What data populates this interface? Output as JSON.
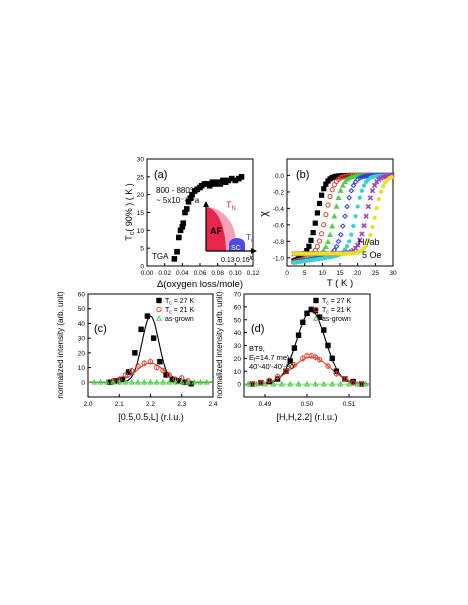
{
  "chart_data": [
    {
      "panel": "(a)",
      "type": "scatter",
      "xlabel": "Δ(oxygen loss/mole)",
      "ylabel": "T<sub>c</sub>( 90% ) ( K )",
      "ylabel_main": "T",
      "ylabel_sub": "c",
      "ylabel_rest": "( 90% ) ( K )",
      "xlim": [
        0.0,
        0.12
      ],
      "ylim": [
        0,
        30
      ],
      "xticks": [
        "0.00",
        "0.02",
        "0.04",
        "0.06",
        "0.08",
        "0.10",
        "0.12"
      ],
      "yticks": [
        "0",
        "5",
        "10",
        "15",
        "20",
        "25",
        "30"
      ],
      "annotations": {
        "temp": "800 - 880°C",
        "pressure": "~ 5x10⁻³ Pa",
        "method": "TGA"
      },
      "inset": {
        "af": "AF",
        "sc": "SC",
        "tn": "T",
        "tn_sub": "N",
        "tc": "T",
        "tc_sub": "c",
        "x_axis": "x",
        "ticks": [
          "0.13",
          "0.16"
        ]
      },
      "series": [
        {
          "marker": "square",
          "color": "#000000",
          "x": [
            0.031,
            0.034,
            0.036,
            0.038,
            0.04,
            0.041,
            0.043,
            0.045,
            0.047,
            0.049,
            0.051,
            0.054,
            0.057,
            0.06,
            0.062,
            0.065,
            0.068,
            0.071,
            0.074,
            0.077,
            0.08,
            0.083,
            0.086,
            0.089,
            0.092,
            0.096,
            0.1,
            0.104,
            0.107
          ],
          "y": [
            2,
            4,
            8,
            10,
            11,
            12,
            15,
            16,
            18,
            19,
            20,
            21,
            21.5,
            22,
            22.5,
            23,
            23,
            22.5,
            23.5,
            23,
            23.5,
            23,
            24,
            23.5,
            24,
            24.5,
            24,
            24.5,
            25
          ]
        }
      ]
    },
    {
      "panel": "(b)",
      "type": "scatter",
      "xlabel": "T ( K )",
      "ylabel": "χ",
      "xlim": [
        0,
        30
      ],
      "ylim": [
        -1.1,
        0.2
      ],
      "xticks": [
        "0",
        "5",
        "10",
        "15",
        "20",
        "25",
        "30"
      ],
      "yticks": [
        "-1.0",
        "-0.8",
        "-0.6",
        "-0.4",
        "-0.2",
        "0.0"
      ],
      "annotations": {
        "field_dir": "H//ab",
        "field": "5 Oe"
      },
      "series": [
        {
          "marker": "square",
          "color": "#000000",
          "tc": 8.5,
          "fill": true
        },
        {
          "marker": "circle",
          "color": "#e8402a",
          "tc": 11.0,
          "fill": false
        },
        {
          "marker": "triangle",
          "color": "#4ad24a",
          "tc": 13.5,
          "fill": true
        },
        {
          "marker": "diamond",
          "color": "#2a3ae8",
          "tc": 16.5,
          "fill": false
        },
        {
          "marker": "star",
          "color": "#38d0d0",
          "tc": 19.5,
          "fill": true
        },
        {
          "marker": "x",
          "color": "#a040c0",
          "tc": 22.5,
          "fill": false
        },
        {
          "marker": "star",
          "color": "#e8e020",
          "tc": 25.0,
          "fill": true
        }
      ]
    },
    {
      "panel": "(c)",
      "type": "scatter",
      "xlabel": "[0.5,0.5,L] (r.l.u.)",
      "ylabel": "normalized intensity (arb. unit)",
      "xlim": [
        2.0,
        2.4
      ],
      "ylim": [
        -10,
        60
      ],
      "xticks": [
        "2.0",
        "2.1",
        "2.2",
        "2.3",
        "2.4"
      ],
      "yticks": [
        "0",
        "10",
        "20",
        "30",
        "40",
        "50",
        "60"
      ],
      "legend": [
        {
          "label_prefix": "T",
          "label_sub": "c",
          "label_rest": " = 27 K",
          "marker": "square",
          "color": "#000000"
        },
        {
          "label_prefix": "T",
          "label_sub": "c",
          "label_rest": " = 21 K",
          "marker": "circle",
          "color": "#e8402a"
        },
        {
          "label_prefix": "",
          "label_sub": "",
          "label_rest": "as-grown",
          "marker": "triangle",
          "color": "#4ad24a"
        }
      ],
      "series": [
        {
          "name": "Tc = 27 K",
          "marker": "square",
          "color": "#000000",
          "fill": true,
          "x": [
            2.07,
            2.09,
            2.11,
            2.13,
            2.15,
            2.17,
            2.19,
            2.21,
            2.23,
            2.25,
            2.27,
            2.29,
            2.31,
            2.33
          ],
          "y": [
            0,
            1,
            2,
            7,
            20,
            36,
            45,
            30,
            14,
            5,
            2,
            1,
            0,
            -1
          ]
        },
        {
          "name": "Tc = 21 K",
          "marker": "circle",
          "color": "#e8402a",
          "fill": false,
          "x": [
            2.08,
            2.1,
            2.12,
            2.14,
            2.16,
            2.18,
            2.2,
            2.22,
            2.24,
            2.26,
            2.28,
            2.3,
            2.32
          ],
          "y": [
            1,
            2,
            5,
            8,
            11,
            13,
            14,
            10,
            8,
            5,
            2,
            3,
            1
          ]
        },
        {
          "name": "as-grown",
          "marker": "triangle",
          "color": "#4ad24a",
          "fill": false,
          "x": [
            2.02,
            2.04,
            2.06,
            2.08,
            2.1,
            2.12,
            2.14,
            2.16,
            2.18,
            2.2,
            2.22,
            2.24,
            2.26,
            2.28,
            2.3,
            2.32,
            2.34,
            2.36,
            2.38
          ],
          "y": [
            0,
            0,
            0,
            0,
            0,
            0,
            0,
            0,
            0,
            0,
            0,
            0,
            0,
            0,
            0,
            0,
            0,
            0,
            0
          ]
        }
      ],
      "fits": [
        {
          "color": "#000000",
          "amp": 45,
          "center": 2.2,
          "sigma": 0.027
        },
        {
          "color": "#e8402a",
          "amp": 13,
          "center": 2.2,
          "sigma": 0.045
        }
      ]
    },
    {
      "panel": "(d)",
      "type": "scatter",
      "xlabel": "[H,H,2.2] (r.l.u.)",
      "ylabel": "normalized intensity (arb. unit)",
      "xlim": [
        0.485,
        0.515
      ],
      "ylim": [
        -10,
        70
      ],
      "xticks": [
        "0.49",
        "0.50",
        "0.51"
      ],
      "yticks": [
        "0",
        "10",
        "20",
        "30",
        "40",
        "50",
        "60",
        "70"
      ],
      "annotations": {
        "instrument": "BT9,",
        "energy_prefix": "E",
        "energy_sub": "f",
        "energy_rest": "=14.7 meV",
        "collimation": "40'-40'-40'-80'"
      },
      "legend": [
        {
          "label_prefix": "T",
          "label_sub": "c",
          "label_rest": " = 27 K",
          "marker": "square",
          "color": "#000000"
        },
        {
          "label_prefix": "T",
          "label_sub": "c",
          "label_rest": " = 21 K",
          "marker": "circle",
          "color": "#e8402a"
        },
        {
          "label_prefix": "",
          "label_sub": "",
          "label_rest": "as-grown",
          "marker": "triangle",
          "color": "#4ad24a"
        }
      ],
      "series": [
        {
          "name": "Tc = 27 K",
          "marker": "square",
          "color": "#000000",
          "fill": true,
          "x": [
            0.487,
            0.489,
            0.491,
            0.493,
            0.495,
            0.496,
            0.497,
            0.498,
            0.499,
            0.5,
            0.501,
            0.502,
            0.503,
            0.504,
            0.505,
            0.506,
            0.507,
            0.509,
            0.511,
            0.513
          ],
          "y": [
            0,
            1,
            2,
            4,
            10,
            18,
            28,
            38,
            48,
            55,
            58,
            57,
            52,
            42,
            30,
            20,
            10,
            4,
            2,
            0
          ]
        },
        {
          "name": "Tc = 21 K",
          "marker": "circle",
          "color": "#e8402a",
          "fill": false,
          "x": [
            0.487,
            0.489,
            0.491,
            0.493,
            0.495,
            0.497,
            0.499,
            0.5,
            0.501,
            0.502,
            0.503,
            0.505,
            0.507,
            0.509,
            0.511,
            0.513
          ],
          "y": [
            0,
            1,
            3,
            6,
            10,
            15,
            20,
            22,
            22,
            21,
            19,
            14,
            8,
            4,
            1,
            0
          ]
        },
        {
          "name": "as-grown",
          "marker": "triangle",
          "color": "#4ad24a",
          "fill": false,
          "x": [
            0.486,
            0.488,
            0.49,
            0.492,
            0.494,
            0.496,
            0.498,
            0.5,
            0.502,
            0.504,
            0.506,
            0.508,
            0.51,
            0.512,
            0.514
          ],
          "y": [
            0,
            0,
            0,
            0,
            0,
            0,
            0,
            0,
            0,
            0,
            0,
            0,
            0,
            0,
            0
          ]
        }
      ],
      "fits": [
        {
          "color": "#000000",
          "amp": 57,
          "center": 0.501,
          "sigma": 0.0034
        },
        {
          "color": "#e8402a",
          "amp": 21,
          "center": 0.501,
          "sigma": 0.0045
        }
      ]
    }
  ]
}
